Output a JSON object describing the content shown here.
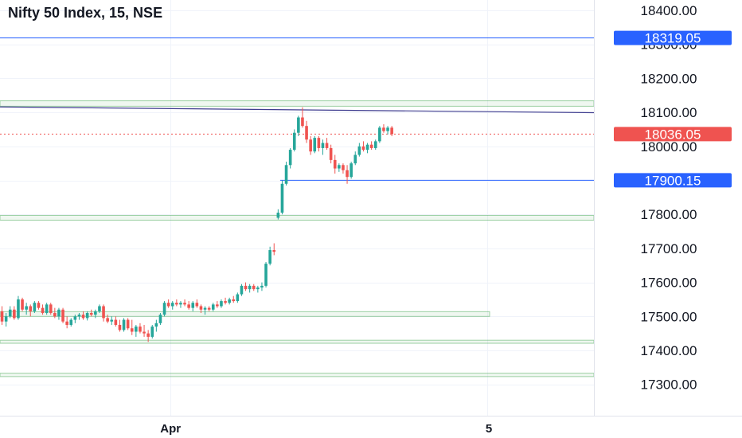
{
  "chart_data": {
    "type": "candlestick",
    "title": "Nifty 50 Index, 15, NSE",
    "y_axis": {
      "position": "right",
      "ylim": [
        17220,
        18440
      ],
      "ticks": [
        18400,
        18300,
        18200,
        18100,
        18000,
        17900,
        17800,
        17700,
        17600,
        17500,
        17400,
        17300
      ],
      "tick_labels": [
        "18400.00",
        "18300.00",
        "18200.00",
        "18100.00",
        "18000.00",
        "17900.00",
        "17800.00",
        "17700.00",
        "17600.00",
        "17500.00",
        "17400.00",
        "17300.00"
      ]
    },
    "x_axis": {
      "labels": [
        {
          "text": "Apr",
          "bar_index": 42
        },
        {
          "text": "5",
          "bar_index": 120
        }
      ]
    },
    "grid": true,
    "price_markers": [
      {
        "value": 18319.05,
        "label": "18319.05",
        "kind": "horizontal-line",
        "color": "#2962ff"
      },
      {
        "value": 18036.05,
        "label": "18036.05",
        "kind": "last-price",
        "color": "#ef5350"
      },
      {
        "value": 17900.15,
        "label": "17900.15",
        "kind": "horizontal-line",
        "color": "#2962ff"
      }
    ],
    "trend_line": {
      "points": [
        [
          0,
          18116
        ],
        [
          178,
          18099
        ]
      ],
      "color": "#3f3d8f"
    },
    "zones": [
      {
        "from": 18118,
        "to": 18134,
        "color": "#2e9e3e"
      },
      {
        "from": 17783,
        "to": 17797,
        "color": "#2e9e3e"
      },
      {
        "from": 17500,
        "to": 17514,
        "color": "#2e9e3e",
        "end_bar": 120
      },
      {
        "from": 17421,
        "to": 17430,
        "color": "#2e9e3e"
      },
      {
        "from": 17323,
        "to": 17333,
        "color": "#2e9e3e"
      }
    ],
    "colors": {
      "up": "#26a69a",
      "down": "#ef5350"
    },
    "candles": [
      [
        17515,
        17530,
        17475,
        17485
      ],
      [
        17485,
        17510,
        17470,
        17500
      ],
      [
        17500,
        17530,
        17495,
        17520
      ],
      [
        17520,
        17530,
        17490,
        17495
      ],
      [
        17495,
        17560,
        17490,
        17550
      ],
      [
        17550,
        17555,
        17515,
        17520
      ],
      [
        17520,
        17540,
        17505,
        17530
      ],
      [
        17530,
        17535,
        17500,
        17515
      ],
      [
        17515,
        17545,
        17510,
        17540
      ],
      [
        17540,
        17545,
        17520,
        17525
      ],
      [
        17525,
        17535,
        17505,
        17510
      ],
      [
        17510,
        17540,
        17505,
        17535
      ],
      [
        17535,
        17540,
        17505,
        17510
      ],
      [
        17510,
        17525,
        17495,
        17500
      ],
      [
        17500,
        17525,
        17490,
        17520
      ],
      [
        17520,
        17525,
        17480,
        17485
      ],
      [
        17485,
        17500,
        17465,
        17475
      ],
      [
        17475,
        17495,
        17470,
        17490
      ],
      [
        17490,
        17505,
        17480,
        17500
      ],
      [
        17500,
        17510,
        17490,
        17505
      ],
      [
        17505,
        17515,
        17490,
        17495
      ],
      [
        17495,
        17515,
        17488,
        17510
      ],
      [
        17510,
        17520,
        17500,
        17505
      ],
      [
        17505,
        17520,
        17495,
        17515
      ],
      [
        17515,
        17535,
        17510,
        17530
      ],
      [
        17530,
        17535,
        17485,
        17495
      ],
      [
        17495,
        17505,
        17480,
        17485
      ],
      [
        17485,
        17500,
        17475,
        17490
      ],
      [
        17490,
        17500,
        17470,
        17475
      ],
      [
        17475,
        17490,
        17455,
        17460
      ],
      [
        17460,
        17495,
        17455,
        17490
      ],
      [
        17490,
        17495,
        17460,
        17465
      ],
      [
        17465,
        17490,
        17445,
        17455
      ],
      [
        17455,
        17475,
        17440,
        17470
      ],
      [
        17470,
        17480,
        17450,
        17455
      ],
      [
        17455,
        17475,
        17440,
        17450
      ],
      [
        17450,
        17460,
        17425,
        17440
      ],
      [
        17440,
        17475,
        17435,
        17470
      ],
      [
        17470,
        17490,
        17455,
        17480
      ],
      [
        17480,
        17510,
        17475,
        17505
      ],
      [
        17505,
        17545,
        17500,
        17540
      ],
      [
        17540,
        17550,
        17525,
        17530
      ],
      [
        17530,
        17545,
        17520,
        17540
      ],
      [
        17540,
        17550,
        17530,
        17535
      ],
      [
        17535,
        17545,
        17525,
        17540
      ],
      [
        17540,
        17550,
        17530,
        17535
      ],
      [
        17535,
        17545,
        17520,
        17525
      ],
      [
        17525,
        17545,
        17515,
        17540
      ],
      [
        17540,
        17550,
        17525,
        17530
      ],
      [
        17530,
        17535,
        17510,
        17520
      ],
      [
        17520,
        17530,
        17505,
        17525
      ],
      [
        17525,
        17530,
        17515,
        17520
      ],
      [
        17520,
        17540,
        17515,
        17535
      ],
      [
        17535,
        17545,
        17525,
        17530
      ],
      [
        17530,
        17550,
        17525,
        17545
      ],
      [
        17545,
        17555,
        17535,
        17540
      ],
      [
        17540,
        17555,
        17535,
        17550
      ],
      [
        17550,
        17560,
        17540,
        17545
      ],
      [
        17545,
        17570,
        17540,
        17565
      ],
      [
        17565,
        17595,
        17560,
        17590
      ],
      [
        17590,
        17600,
        17575,
        17580
      ],
      [
        17580,
        17595,
        17570,
        17590
      ],
      [
        17590,
        17595,
        17575,
        17580
      ],
      [
        17580,
        17590,
        17570,
        17585
      ],
      [
        17585,
        17600,
        17575,
        17590
      ],
      [
        17590,
        17660,
        17585,
        17655
      ],
      [
        17655,
        17705,
        17650,
        17695
      ],
      [
        17695,
        17715,
        17680,
        17690
      ],
      [
        17790,
        17815,
        17785,
        17805
      ],
      [
        17805,
        17900,
        17800,
        17890
      ],
      [
        17890,
        17955,
        17885,
        17945
      ],
      [
        17945,
        17995,
        17935,
        17990
      ],
      [
        17990,
        18050,
        17985,
        18040
      ],
      [
        18040,
        18090,
        18030,
        18085
      ],
      [
        18085,
        18115,
        18055,
        18060
      ],
      [
        18060,
        18075,
        18010,
        18020
      ],
      [
        18020,
        18030,
        17975,
        17985
      ],
      [
        17985,
        18030,
        17980,
        18025
      ],
      [
        18025,
        18030,
        17985,
        17995
      ],
      [
        17995,
        18020,
        17975,
        18010
      ],
      [
        18010,
        18025,
        17990,
        17995
      ],
      [
        17995,
        18005,
        17950,
        17960
      ],
      [
        17960,
        17975,
        17920,
        17935
      ],
      [
        17935,
        17950,
        17925,
        17945
      ],
      [
        17945,
        17950,
        17920,
        17930
      ],
      [
        17930,
        17945,
        17890,
        17910
      ],
      [
        17910,
        17955,
        17905,
        17950
      ],
      [
        17950,
        17985,
        17945,
        17975
      ],
      [
        17975,
        18010,
        17970,
        18000
      ],
      [
        18000,
        18015,
        17985,
        17990
      ],
      [
        17990,
        18010,
        17980,
        18005
      ],
      [
        18005,
        18015,
        17990,
        17995
      ],
      [
        17995,
        18020,
        17990,
        18015
      ],
      [
        18015,
        18060,
        18010,
        18055
      ],
      [
        18055,
        18065,
        18040,
        18045
      ],
      [
        18045,
        18060,
        18035,
        18055
      ],
      [
        18055,
        18060,
        18030,
        18036
      ]
    ]
  }
}
